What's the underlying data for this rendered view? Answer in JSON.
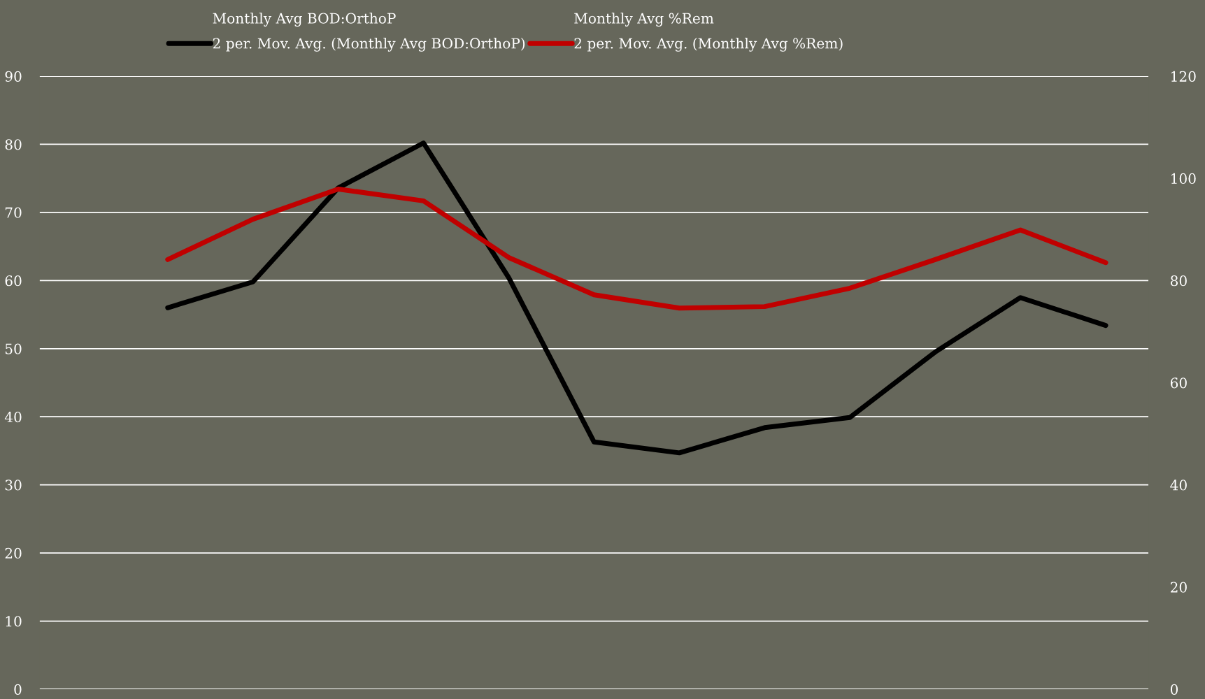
{
  "chart_data": {
    "type": "line",
    "categories": [
      null,
      null,
      null,
      null,
      null,
      null,
      null,
      null,
      null,
      null,
      null,
      null,
      null
    ],
    "series": [
      {
        "name": "2 per. Mov. Avg. (Monthly Avg BOD:OrthoP)",
        "color": "#000000",
        "values": [
          null,
          56.0,
          59.8,
          73.6,
          80.2,
          60.4,
          36.3,
          34.7,
          38.4,
          39.9,
          49.5,
          57.5,
          53.4
        ]
      },
      {
        "name": "2 per. Mov. Avg. (Monthly Avg %Rem)",
        "color": "#c00000",
        "axis": "y2",
        "values": [
          null,
          84.1,
          92.0,
          97.9,
          95.6,
          84.5,
          77.2,
          74.6,
          74.9,
          78.5,
          84.1,
          89.9,
          83.5
        ]
      }
    ],
    "annotations": [
      "Monthly Avg BOD:OrthoP",
      "Monthly Avg %Rem"
    ],
    "ylim": [
      0,
      90
    ],
    "yticks": [
      0,
      10,
      20,
      30,
      40,
      50,
      60,
      70,
      80,
      90
    ],
    "y2lim": [
      0,
      120
    ],
    "y2ticks": [
      0,
      20,
      40,
      60,
      80,
      100,
      120
    ],
    "grid": "y",
    "legend": "top",
    "tick_labels": "y",
    "marker": "none",
    "line_style": "solid"
  }
}
